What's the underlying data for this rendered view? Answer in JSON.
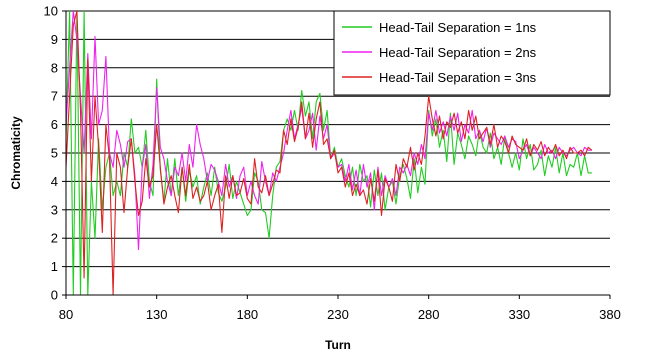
{
  "chart_data": {
    "type": "line",
    "xlabel": "Turn",
    "ylabel": "Chromaticity",
    "xlim": [
      80,
      380
    ],
    "ylim": [
      0,
      10
    ],
    "xticks": [
      80,
      130,
      180,
      230,
      280,
      330,
      380
    ],
    "yticks": [
      0,
      1,
      2,
      3,
      4,
      5,
      6,
      7,
      8,
      9,
      10
    ],
    "grid": "horizontal",
    "legend_position": "top-right",
    "series": [
      {
        "name": "Head-Tail Separation = 1ns",
        "color": "#22cc22",
        "x": [
          80,
          82,
          84,
          86,
          88,
          90,
          92,
          94,
          96,
          98,
          100,
          102,
          104,
          106,
          108,
          110,
          112,
          114,
          116,
          118,
          120,
          122,
          124,
          126,
          128,
          130,
          132,
          134,
          136,
          138,
          140,
          142,
          144,
          146,
          148,
          150,
          152,
          154,
          156,
          158,
          160,
          162,
          164,
          166,
          168,
          170,
          172,
          174,
          176,
          178,
          180,
          182,
          184,
          186,
          188,
          190,
          192,
          194,
          196,
          198,
          200,
          202,
          204,
          206,
          208,
          210,
          212,
          214,
          216,
          218,
          220,
          222,
          224,
          226,
          228,
          230,
          232,
          234,
          236,
          238,
          240,
          242,
          244,
          246,
          248,
          250,
          252,
          254,
          256,
          258,
          260,
          262,
          264,
          266,
          268,
          270,
          272,
          274,
          276,
          278,
          280,
          282,
          284,
          286,
          288,
          290,
          292,
          294,
          296,
          298,
          300,
          302,
          304,
          306,
          308,
          310,
          312,
          314,
          316,
          318,
          320,
          322,
          324,
          326,
          328,
          330,
          332,
          334,
          336,
          338,
          340,
          342,
          344,
          346,
          348,
          350,
          352,
          354,
          356,
          358,
          360,
          362,
          364,
          366,
          368,
          370
        ],
        "values": [
          5.5,
          10,
          0,
          10,
          0,
          10,
          0,
          4,
          2,
          5.5,
          3,
          4.5,
          5,
          3.5,
          4,
          3.5,
          5,
          4.5,
          6.2,
          5,
          5.2,
          4.5,
          5.8,
          4,
          3.5,
          7.6,
          4.4,
          3.3,
          4.8,
          3.5,
          4.8,
          3.5,
          4.5,
          3.3,
          4.4,
          3.8,
          4.2,
          3.2,
          3.8,
          4.3,
          3.5,
          4.5,
          3.6,
          3.3,
          3.8,
          4.6,
          3.4,
          4,
          3.6,
          3.2,
          2.8,
          3,
          4.3,
          4,
          3,
          2.9,
          2,
          3.5,
          4.5,
          4.7,
          5.8,
          6.2,
          5.8,
          6.5,
          5.8,
          7.2,
          6.3,
          6.8,
          5.5,
          6.8,
          7.1,
          5.8,
          6.5,
          4.8,
          5.2,
          4.5,
          4.8,
          4.2,
          3.8,
          4.5,
          3.5,
          4.6,
          4,
          4.2,
          3.1,
          4.4,
          3.5,
          4.3,
          3,
          3.8,
          4,
          3.2,
          4.2,
          4.6,
          4.1,
          3.4,
          4.8,
          3.6,
          4.5,
          3.9,
          6.5,
          5.6,
          6.2,
          5.2,
          5.8,
          4.7,
          6.4,
          4.6,
          5.7,
          5.3,
          4.8,
          5.6,
          5.3,
          4.9,
          5.8,
          5.2,
          5,
          5.7,
          4.8,
          5.2,
          4.6,
          5.6,
          5,
          4.5,
          5,
          4.4,
          5.5,
          4.8,
          5.3,
          4.4,
          4.6,
          5.1,
          4.2,
          4.9,
          4.5,
          5.2,
          4.3,
          5,
          4.2,
          4.6,
          4.5,
          5,
          4.2,
          4.9,
          4.3,
          4.3
        ]
      },
      {
        "name": "Head-Tail Separation = 2ns",
        "color": "#ee22ee",
        "x": [
          80,
          82,
          84,
          86,
          88,
          90,
          92,
          94,
          96,
          98,
          100,
          102,
          104,
          106,
          108,
          110,
          112,
          114,
          116,
          118,
          120,
          122,
          124,
          126,
          128,
          130,
          132,
          134,
          136,
          138,
          140,
          142,
          144,
          146,
          148,
          150,
          152,
          154,
          156,
          158,
          160,
          162,
          164,
          166,
          168,
          170,
          172,
          174,
          176,
          178,
          180,
          182,
          184,
          186,
          188,
          190,
          192,
          194,
          196,
          198,
          200,
          202,
          204,
          206,
          208,
          210,
          212,
          214,
          216,
          218,
          220,
          222,
          224,
          226,
          228,
          230,
          232,
          234,
          236,
          238,
          240,
          242,
          244,
          246,
          248,
          250,
          252,
          254,
          256,
          258,
          260,
          262,
          264,
          266,
          268,
          270,
          272,
          274,
          276,
          278,
          280,
          282,
          284,
          286,
          288,
          290,
          292,
          294,
          296,
          298,
          300,
          302,
          304,
          306,
          308,
          310,
          312,
          314,
          316,
          318,
          320,
          322,
          324,
          326,
          328,
          330,
          332,
          334,
          336,
          338,
          340,
          342,
          344,
          346,
          348,
          350,
          352,
          354,
          356,
          358,
          360,
          362,
          364,
          366,
          368,
          370
        ],
        "values": [
          6,
          8,
          10,
          9,
          7,
          5,
          8.5,
          5.5,
          9.1,
          6,
          6.5,
          8.4,
          5,
          4.5,
          5.8,
          5.3,
          4.5,
          5.4,
          5.5,
          4.2,
          1.6,
          4.5,
          5.3,
          3.4,
          4.6,
          7.3,
          5.2,
          4.8,
          4,
          3.5,
          4.5,
          4.2,
          5,
          4,
          5.3,
          4.5,
          6,
          5.3,
          4.8,
          4,
          4.6,
          4.4,
          4,
          3.5,
          4.6,
          3.8,
          4.2,
          3.4,
          4.2,
          4.5,
          3.5,
          4,
          3.5,
          3.2,
          4.7,
          4,
          3.5,
          4.3,
          4,
          4.5,
          5,
          5.8,
          6.5,
          5.5,
          6,
          6.6,
          5.5,
          5.8,
          6.4,
          5.1,
          6.3,
          5.5,
          6,
          4.8,
          5,
          4.5,
          4.6,
          4,
          4.6,
          3.7,
          4.4,
          3.5,
          4.6,
          3.8,
          4.3,
          3,
          4.5,
          3.5,
          4.2,
          3.8,
          4.1,
          3.5,
          4.5,
          4.3,
          4.6,
          4.2,
          5,
          4.6,
          5.3,
          4.8,
          6.4,
          5.8,
          6.5,
          5.7,
          6.1,
          5.6,
          6.3,
          5.8,
          6.4,
          5.4,
          6,
          5.7,
          6.5,
          5.5,
          5.8,
          5.4,
          5.9,
          5.2,
          5.7,
          5.5,
          5.3,
          5.6,
          5.2,
          5.5,
          5.4,
          4.8,
          5.1,
          5.3,
          4.9,
          5.2,
          5,
          4.8,
          5.3,
          5,
          5.1,
          4.8,
          5.2,
          5,
          4.9,
          5.1,
          5.2,
          5,
          4.9,
          5.2,
          5.1,
          5.1
        ]
      },
      {
        "name": "Head-Tail Separation = 3ns",
        "color": "#dd2222",
        "x": [
          80,
          82,
          84,
          86,
          88,
          90,
          92,
          94,
          96,
          98,
          100,
          102,
          104,
          106,
          108,
          110,
          112,
          114,
          116,
          118,
          120,
          122,
          124,
          126,
          128,
          130,
          132,
          134,
          136,
          138,
          140,
          142,
          144,
          146,
          148,
          150,
          152,
          154,
          156,
          158,
          160,
          162,
          164,
          166,
          168,
          170,
          172,
          174,
          176,
          178,
          180,
          182,
          184,
          186,
          188,
          190,
          192,
          194,
          196,
          198,
          200,
          202,
          204,
          206,
          208,
          210,
          212,
          214,
          216,
          218,
          220,
          222,
          224,
          226,
          228,
          230,
          232,
          234,
          236,
          238,
          240,
          242,
          244,
          246,
          248,
          250,
          252,
          254,
          256,
          258,
          260,
          262,
          264,
          266,
          268,
          270,
          272,
          274,
          276,
          278,
          280,
          282,
          284,
          286,
          288,
          290,
          292,
          294,
          296,
          298,
          300,
          302,
          304,
          306,
          308,
          310,
          312,
          314,
          316,
          318,
          320,
          322,
          324,
          326,
          328,
          330,
          332,
          334,
          336,
          338,
          340,
          342,
          344,
          346,
          348,
          350,
          352,
          354,
          356,
          358,
          360,
          362,
          364,
          366,
          368,
          370
        ],
        "values": [
          4.5,
          7,
          9.5,
          10,
          6.5,
          0.6,
          8.3,
          4,
          7,
          5.2,
          2.2,
          6,
          4.8,
          0,
          5,
          4.5,
          2.9,
          4.5,
          5.5,
          4,
          2.8,
          3.3,
          4.8,
          3.8,
          4.2,
          6,
          4.5,
          3.2,
          3.8,
          4.2,
          3.5,
          2.9,
          4.5,
          3.5,
          4.6,
          3.4,
          3.8,
          3.3,
          3.5,
          4,
          3,
          3.5,
          3.9,
          2.2,
          4.2,
          3.4,
          4.2,
          3.5,
          3.6,
          4.1,
          3.4,
          3.2,
          4.8,
          3.8,
          3.6,
          4.2,
          3.5,
          3.9,
          4.4,
          4.3,
          5.8,
          5.3,
          6.2,
          5.4,
          5.9,
          6.8,
          5.5,
          6.4,
          5.2,
          6.2,
          6.8,
          5.3,
          5.5,
          4.8,
          5.1,
          4.3,
          4.5,
          3.8,
          4.3,
          3.5,
          3.9,
          3.5,
          3.7,
          3.2,
          4.1,
          3.3,
          4.4,
          2.8,
          4.1,
          3.8,
          3.3,
          4.6,
          4,
          4.8,
          4.5,
          5.2,
          4.4,
          5,
          4.6,
          5.6,
          7,
          6.2,
          5.6,
          6.3,
          5.5,
          6.1,
          5.9,
          6.4,
          5.7,
          6.1,
          5.5,
          6.5,
          5.8,
          6.3,
          5.5,
          5.7,
          5.9,
          5.3,
          6,
          5.2,
          5.6,
          5.4,
          5,
          5.6,
          5.3,
          5.2,
          5.1,
          5.5,
          4.9,
          5.3,
          5.1,
          5.4,
          4.9,
          5.2,
          5,
          5.3,
          4.9,
          5.1,
          4.8,
          5.2,
          5,
          5,
          5.1,
          4.9,
          5.2,
          5.1
        ]
      }
    ]
  }
}
